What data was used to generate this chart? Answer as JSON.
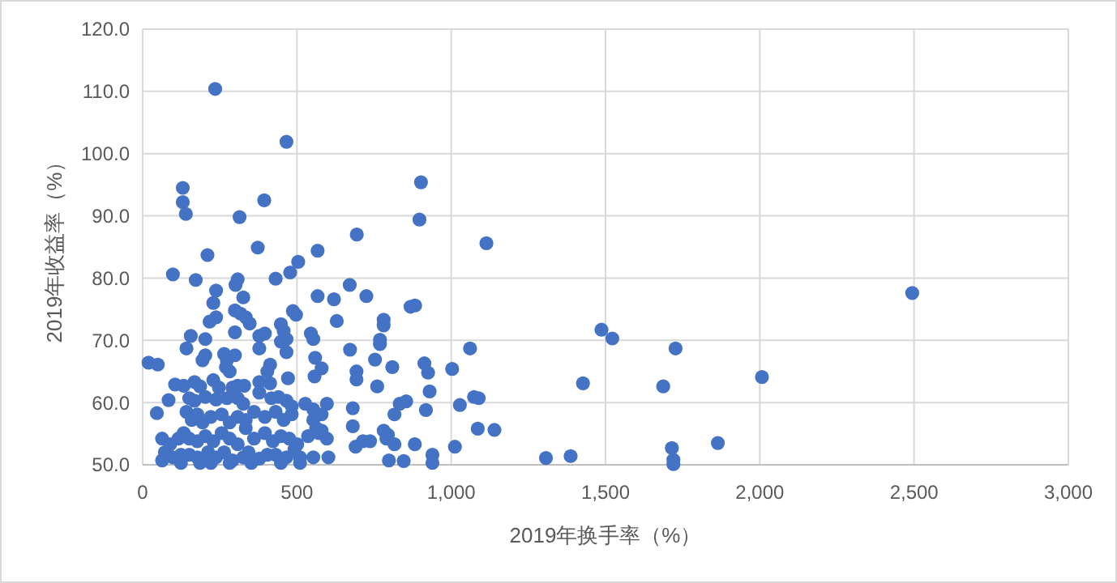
{
  "chart_data": {
    "type": "scatter",
    "xlabel": "2019年换手率（%）",
    "ylabel": "2019年收益率（%）",
    "xlim": [
      0,
      3000
    ],
    "xticks": [
      0,
      500,
      {
        "value": 1000,
        "label": "1,000"
      },
      {
        "value": 1500,
        "label": "1,500"
      },
      {
        "value": 2000,
        "label": "2,000"
      },
      {
        "value": 2500,
        "label": "2,500"
      },
      {
        "value": 3000,
        "label": "3,000"
      }
    ],
    "ylim": [
      50,
      120
    ],
    "yticks": [
      {
        "value": 50,
        "label": "50.0"
      },
      {
        "value": 60,
        "label": "60.0"
      },
      {
        "value": 70,
        "label": "70.0"
      },
      {
        "value": 80,
        "label": "80.0"
      },
      {
        "value": 90,
        "label": "90.0"
      },
      {
        "value": 100,
        "label": "100.0"
      },
      {
        "value": 110,
        "label": "110.0"
      },
      {
        "value": 120,
        "label": "120.0"
      }
    ],
    "grid": true,
    "marker": "circle",
    "series": [
      {
        "color": "#4472c4",
        "x": [
          235,
          466,
          130,
          130,
          140,
          314,
          394,
          694,
          902,
          897,
          1114,
          1487,
          1522,
          1727,
          1061,
          913,
          925,
          1003,
          930,
          918,
          1028,
          1074,
          1089,
          1427,
          1687,
          1086,
          1140,
          1012,
          939,
          939,
          1307,
          1387,
          1715,
          1720,
          1720,
          1864,
          2494,
          2007,
          210,
          373,
          567,
          98,
          172,
          301,
          308,
          431,
          478,
          504,
          671,
          238,
          326,
          229,
          567,
          620,
          725,
          299,
          317,
          334,
          347,
          238,
          217,
          487,
          497,
          629,
          781,
          781,
          868,
          883,
          299,
          378,
          396,
          448,
          457,
          466,
          545,
          553,
          156,
          203,
          142,
          203,
          194,
          264,
          299,
          273,
          378,
          448,
          466,
          672,
          769,
          769,
          559,
          19,
          49,
          270,
          282,
          413,
          404,
          580,
          557,
          693,
          693,
          753,
          809,
          471,
          760,
          105,
          133,
          168,
          186,
          229,
          247,
          291,
          308,
          329,
          378,
          413,
          84,
          46,
          151,
          168,
          203,
          238,
          273,
          308,
          326,
          378,
          417,
          440,
          466,
          483,
          527,
          553,
          580,
          597,
          681,
          816,
          833,
          854,
          142,
          159,
          177,
          194,
          221,
          256,
          282,
          308,
          334,
          361,
          396,
          431,
          457,
          483,
          553,
          580,
          562,
          681,
          781,
          795,
          63,
          89,
          116,
          133,
          151,
          177,
          203,
          229,
          256,
          282,
          308,
          334,
          361,
          396,
          422,
          448,
          475,
          501,
          536,
          571,
          597,
          690,
          714,
          737,
          790,
          816,
          882,
          72,
          98,
          124,
          151,
          177,
          212,
          238,
          264,
          291,
          326,
          343,
          378,
          404,
          431,
          466,
          492,
          510,
          553,
          602,
          798,
          846,
          63,
          124,
          186,
          221,
          282,
          352,
          448,
          510
        ],
        "values": [
          110.4,
          101.9,
          94.5,
          92.2,
          90.3,
          89.8,
          92.5,
          87.0,
          95.4,
          89.4,
          85.6,
          71.7,
          70.3,
          68.7,
          68.7,
          66.3,
          64.8,
          65.4,
          61.8,
          58.8,
          59.6,
          60.9,
          60.7,
          63.1,
          62.6,
          55.8,
          55.6,
          52.9,
          51.6,
          50.3,
          51.1,
          51.4,
          52.7,
          50.8,
          50.1,
          53.5,
          77.6,
          64.1,
          83.7,
          84.9,
          84.4,
          80.6,
          79.7,
          78.9,
          79.8,
          79.9,
          80.9,
          82.6,
          78.9,
          78.0,
          76.9,
          76.0,
          77.1,
          76.6,
          77.1,
          74.8,
          74.3,
          73.7,
          72.7,
          73.7,
          73.0,
          74.7,
          74.1,
          73.1,
          73.3,
          72.4,
          75.4,
          75.6,
          71.3,
          70.7,
          71.1,
          72.6,
          71.5,
          70.2,
          71.1,
          70.2,
          70.7,
          70.2,
          68.7,
          67.6,
          66.8,
          67.8,
          67.6,
          66.8,
          68.7,
          69.8,
          68.1,
          68.5,
          70.1,
          69.4,
          67.2,
          66.4,
          66.1,
          65.7,
          65.0,
          66.1,
          65.0,
          65.5,
          64.2,
          65.0,
          63.7,
          66.9,
          65.7,
          63.9,
          62.6,
          62.9,
          62.7,
          63.3,
          62.6,
          63.6,
          62.4,
          62.4,
          62.7,
          62.7,
          63.3,
          63.1,
          60.4,
          58.3,
          60.7,
          60.3,
          60.9,
          60.5,
          60.7,
          60.7,
          59.8,
          61.6,
          60.7,
          60.9,
          60.3,
          59.4,
          59.8,
          58.9,
          58.1,
          59.8,
          59.1,
          58.1,
          59.8,
          60.2,
          58.5,
          57.2,
          58.1,
          56.8,
          57.7,
          58.1,
          56.8,
          57.7,
          57.2,
          58.5,
          57.7,
          58.5,
          57.2,
          58.1,
          57.2,
          55.5,
          55.9,
          56.2,
          55.5,
          54.8,
          54.2,
          53.3,
          54.2,
          55.1,
          54.2,
          53.8,
          54.6,
          53.8,
          55.1,
          54.2,
          53.3,
          55.9,
          54.2,
          55.1,
          53.8,
          54.6,
          54.2,
          53.3,
          54.6,
          55.1,
          54.2,
          52.9,
          53.8,
          53.8,
          54.2,
          53.3,
          53.3,
          52.0,
          51.2,
          51.6,
          51.6,
          51.2,
          52.0,
          51.2,
          52.0,
          50.7,
          51.2,
          52.0,
          51.0,
          51.6,
          51.6,
          51.2,
          52.5,
          51.2,
          51.2,
          51.2,
          50.7,
          50.6,
          50.7,
          50.3,
          50.3,
          50.3,
          50.3,
          50.3,
          50.3,
          50.3
        ]
      }
    ]
  }
}
